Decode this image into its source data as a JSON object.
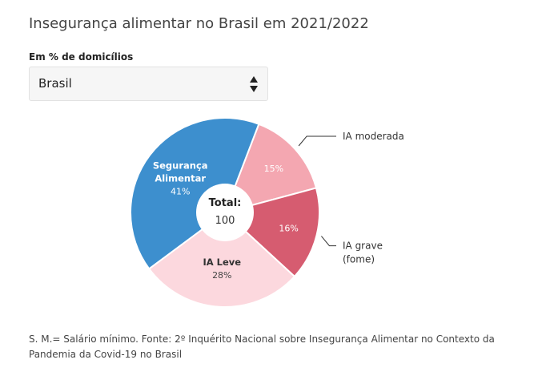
{
  "title": "Insegurança alimentar no Brasil em 2021/2022",
  "selector": {
    "label": "Em % de domicílios",
    "value": "Brasil"
  },
  "chart_data": {
    "type": "pie",
    "title": "Insegurança alimentar no Brasil em 2021/2022",
    "unit": "%",
    "center_label": "Total:",
    "center_value": "100",
    "slices": [
      {
        "name": "Segurança Alimentar",
        "value": 41,
        "label_lines": [
          "Segurança",
          "Alimentar"
        ],
        "value_text": "41%",
        "color": "#3d8fce",
        "label_placement": "inside"
      },
      {
        "name": "IA moderada",
        "value": 15,
        "label_lines": [
          "IA moderada"
        ],
        "value_text": "15%",
        "color": "#f4a7b1",
        "label_placement": "outside"
      },
      {
        "name": "IA grave (fome)",
        "value": 16,
        "label_lines": [
          "IA grave",
          "(fome)"
        ],
        "value_text": "16%",
        "color": "#d65c70",
        "label_placement": "outside"
      },
      {
        "name": "IA Leve",
        "value": 28,
        "label_lines": [
          "IA Leve"
        ],
        "value_text": "28%",
        "color": "#fcd8de",
        "label_placement": "inside"
      }
    ]
  },
  "footnote": "S. M.= Salário mínimo. Fonte: 2º Inquérito Nacional sobre Insegurança Alimentar no Contexto da Pandemia da Covid-19 no Brasil"
}
